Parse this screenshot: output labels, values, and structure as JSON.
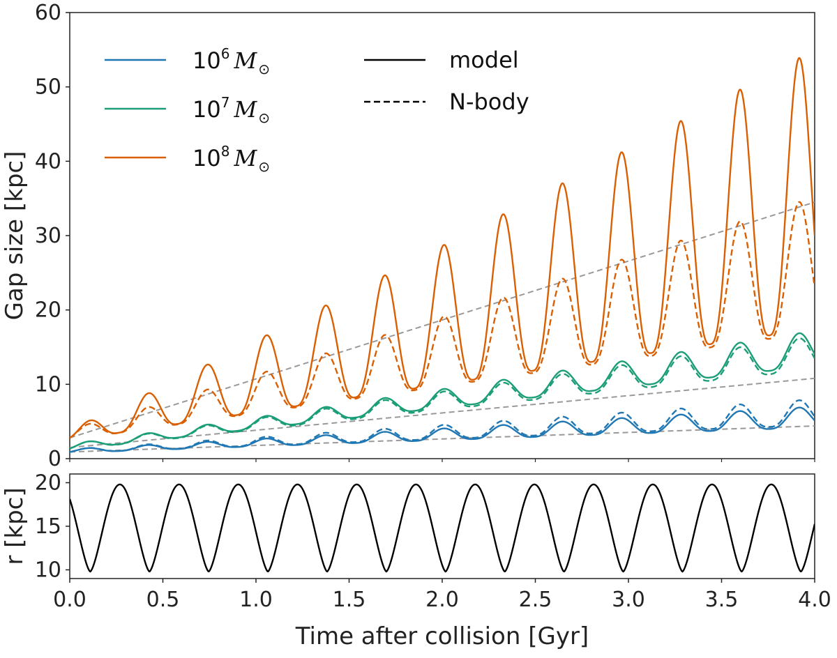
{
  "chart_data": [
    {
      "type": "line",
      "ylabel": "Gap size [kpc]",
      "xlim": [
        0,
        4
      ],
      "ylim": [
        0,
        60
      ],
      "yticks": [
        "0",
        "10",
        "20",
        "30",
        "40",
        "50",
        "60"
      ],
      "legend_position": "top-left",
      "legend": {
        "mass_entries": [
          {
            "base": "10",
            "exp": "6",
            "unit": "M",
            "sub": "⊙",
            "color": "#1f77b4"
          },
          {
            "base": "10",
            "exp": "7",
            "unit": "M",
            "sub": "⊙",
            "color": "#1b9e77"
          },
          {
            "base": "10",
            "exp": "8",
            "unit": "M",
            "sub": "⊙",
            "color": "#d95f02"
          }
        ],
        "style_entries": [
          {
            "label": "model",
            "style": "solid"
          },
          {
            "label": "N-body",
            "style": "dashed"
          }
        ]
      },
      "series": [
        {
          "name": "10^6 model",
          "color": "#1f77b4",
          "style": "solid",
          "phase": 0,
          "envelope_start": [
            0.8,
            1.3
          ],
          "envelope_end": [
            4.2,
            7.0
          ]
        },
        {
          "name": "10^6 N-body",
          "color": "#1f77b4",
          "style": "dashed",
          "phase": 0,
          "envelope_start": [
            0.8,
            1.3
          ],
          "envelope_end": [
            4.5,
            8.0
          ]
        },
        {
          "name": "10^7 model",
          "color": "#1b9e77",
          "style": "solid",
          "phase": 0,
          "envelope_start": [
            1.2,
            2.0
          ],
          "envelope_end": [
            12.5,
            17.2
          ]
        },
        {
          "name": "10^7 N-body",
          "color": "#1b9e77",
          "style": "dashed",
          "phase": 0,
          "envelope_start": [
            1.2,
            2.0
          ],
          "envelope_end": [
            12.0,
            16.5
          ]
        },
        {
          "name": "10^8 model",
          "color": "#d95f02",
          "style": "solid",
          "phase": 0,
          "envelope_start": [
            2.5,
            4.0
          ],
          "envelope_end": [
            17.5,
            55.0
          ]
        },
        {
          "name": "10^8 N-body",
          "color": "#d95f02",
          "style": "dashed",
          "phase": 0,
          "envelope_start": [
            2.5,
            4.0
          ],
          "envelope_end": [
            17.0,
            35.2
          ]
        }
      ],
      "reference_lines": [
        {
          "name": "linear fit 10^8",
          "color": "#999999",
          "style": "dashed",
          "y0": 2.8,
          "y1": 34.5
        },
        {
          "name": "linear fit 10^7",
          "color": "#999999",
          "style": "dashed",
          "y0": 1.5,
          "y1": 10.8
        },
        {
          "name": "linear fit 10^6",
          "color": "#999999",
          "style": "dashed",
          "y0": 0.9,
          "y1": 4.4
        }
      ],
      "oscillation_period_gyr": 0.318,
      "first_peak_gyr": 0.1
    },
    {
      "type": "line",
      "xlabel": "Time after collision [Gyr]",
      "ylabel": "r [kpc]",
      "xlim": [
        0,
        4
      ],
      "ylim": [
        9,
        21
      ],
      "yticks": [
        "10",
        "15",
        "20"
      ],
      "xticks": [
        "0.0",
        "0.5",
        "1.0",
        "1.5",
        "2.0",
        "2.5",
        "3.0",
        "3.5",
        "4.0"
      ],
      "series": [
        {
          "name": "orbital radius",
          "color": "#000000",
          "style": "solid",
          "min": 9.8,
          "max": 19.8,
          "period_gyr": 0.318,
          "first_min_gyr": 0.11
        }
      ]
    }
  ]
}
